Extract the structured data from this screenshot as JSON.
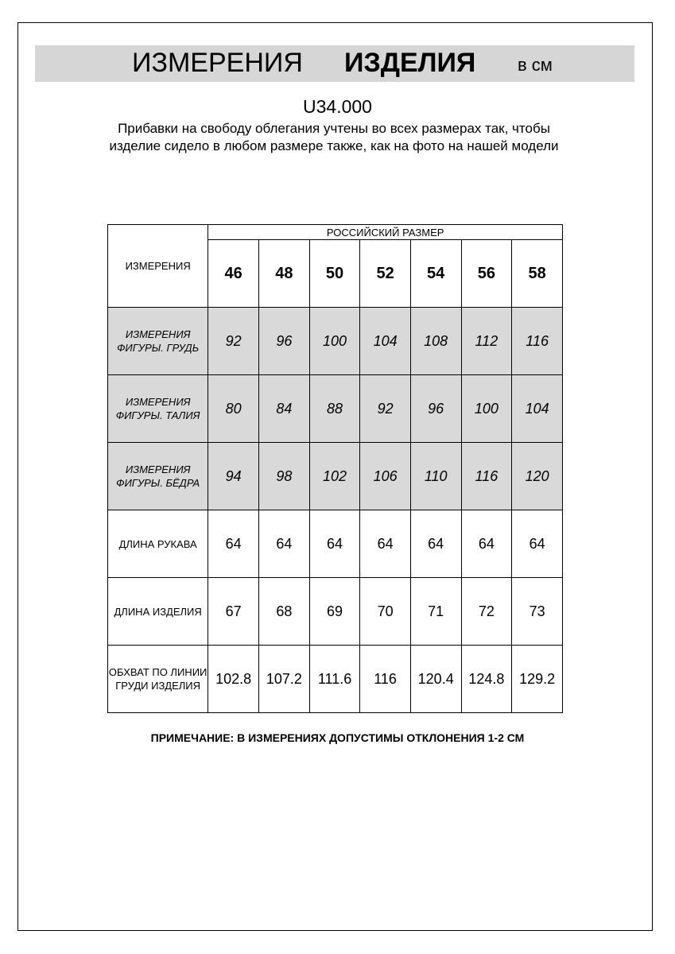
{
  "header": {
    "title_regular": "ИЗМЕРЕНИЯ",
    "title_bold": "ИЗДЕЛИЯ",
    "unit": "в см"
  },
  "article": "U34.000",
  "description": "Прибавки на свободу облегания учтены во всех размерах так, чтобы изделие сидело в любом размере также, как на фото на нашей модели",
  "table": {
    "corner": "ИЗМЕРЕНИЯ",
    "group_header": "РОССИЙСКИЙ РАЗМЕР",
    "sizes": [
      "46",
      "48",
      "50",
      "52",
      "54",
      "56",
      "58"
    ],
    "rows": [
      {
        "label": "ИЗМЕРЕНИЯ ФИГУРЫ. ГРУДЬ",
        "shaded": true,
        "values": [
          "92",
          "96",
          "100",
          "104",
          "108",
          "112",
          "116"
        ]
      },
      {
        "label": "ИЗМЕРЕНИЯ ФИГУРЫ. ТАЛИЯ",
        "shaded": true,
        "values": [
          "80",
          "84",
          "88",
          "92",
          "96",
          "100",
          "104"
        ]
      },
      {
        "label": "ИЗМЕРЕНИЯ ФИГУРЫ. БЁДРА",
        "shaded": true,
        "values": [
          "94",
          "98",
          "102",
          "106",
          "110",
          "116",
          "120"
        ]
      },
      {
        "label": "ДЛИНА РУКАВА",
        "shaded": false,
        "values": [
          "64",
          "64",
          "64",
          "64",
          "64",
          "64",
          "64"
        ]
      },
      {
        "label": "ДЛИНА ИЗДЕЛИЯ",
        "shaded": false,
        "values": [
          "67",
          "68",
          "69",
          "70",
          "71",
          "72",
          "73"
        ]
      },
      {
        "label": "ОБХВАТ ПО ЛИНИИ ГРУДИ ИЗДЕЛИЯ",
        "shaded": false,
        "values": [
          "102.8",
          "107.2",
          "111.6",
          "116",
          "120.4",
          "124.8",
          "129.2"
        ]
      }
    ]
  },
  "note": "ПРИМЕЧАНИЕ: В ИЗМЕРЕНИЯХ ДОПУСТИМЫ ОТКЛОНЕНИЯ 1-2 СМ",
  "colors": {
    "header_bar": "#d6d6d6",
    "shaded_row": "#d9d9d9"
  }
}
